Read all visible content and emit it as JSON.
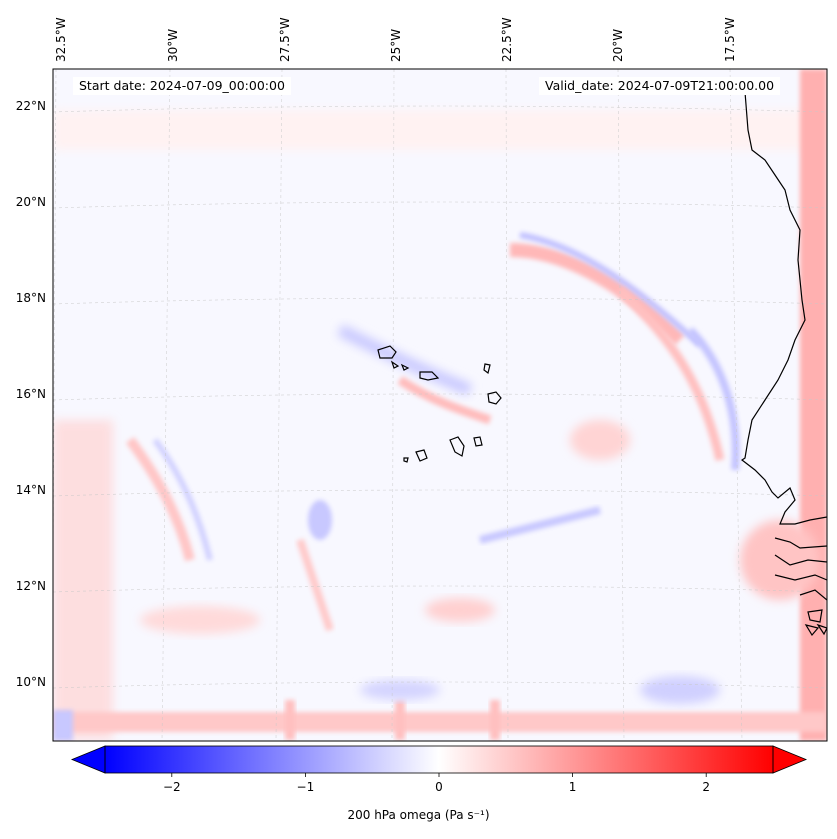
{
  "map": {
    "start_date_text": "Start date: 2024-07-09_00:00:00",
    "valid_date_text": "Valid_date: 2024-07-09T21:00:00.00",
    "lon_labels": [
      "32.5°W",
      "30°W",
      "27.5°W",
      "25°W",
      "22.5°W",
      "20°W",
      "17.5°W"
    ],
    "lat_labels": [
      "22°N",
      "20°N",
      "18°N",
      "16°N",
      "14°N",
      "12°N",
      "10°N"
    ],
    "extent": {
      "lon_min": -32.7,
      "lon_max": -15.1,
      "lat_min": 8.8,
      "lat_max": 22.7
    },
    "gridlines": "dashed-light-gray",
    "field": "200 hPa omega",
    "colormap": "bwr"
  },
  "colorbar": {
    "label_text": "200 hPa omega (Pa s⁻¹)",
    "ticks": [
      "−2",
      "−1",
      "0",
      "1",
      "2"
    ],
    "tick_values": [
      -2,
      -1,
      0,
      1,
      2
    ],
    "range": [
      -2.5,
      2.5
    ],
    "extend": "both",
    "colors": {
      "min": "#0000ff",
      "mid": "#ffffff",
      "max": "#ff0000"
    }
  }
}
